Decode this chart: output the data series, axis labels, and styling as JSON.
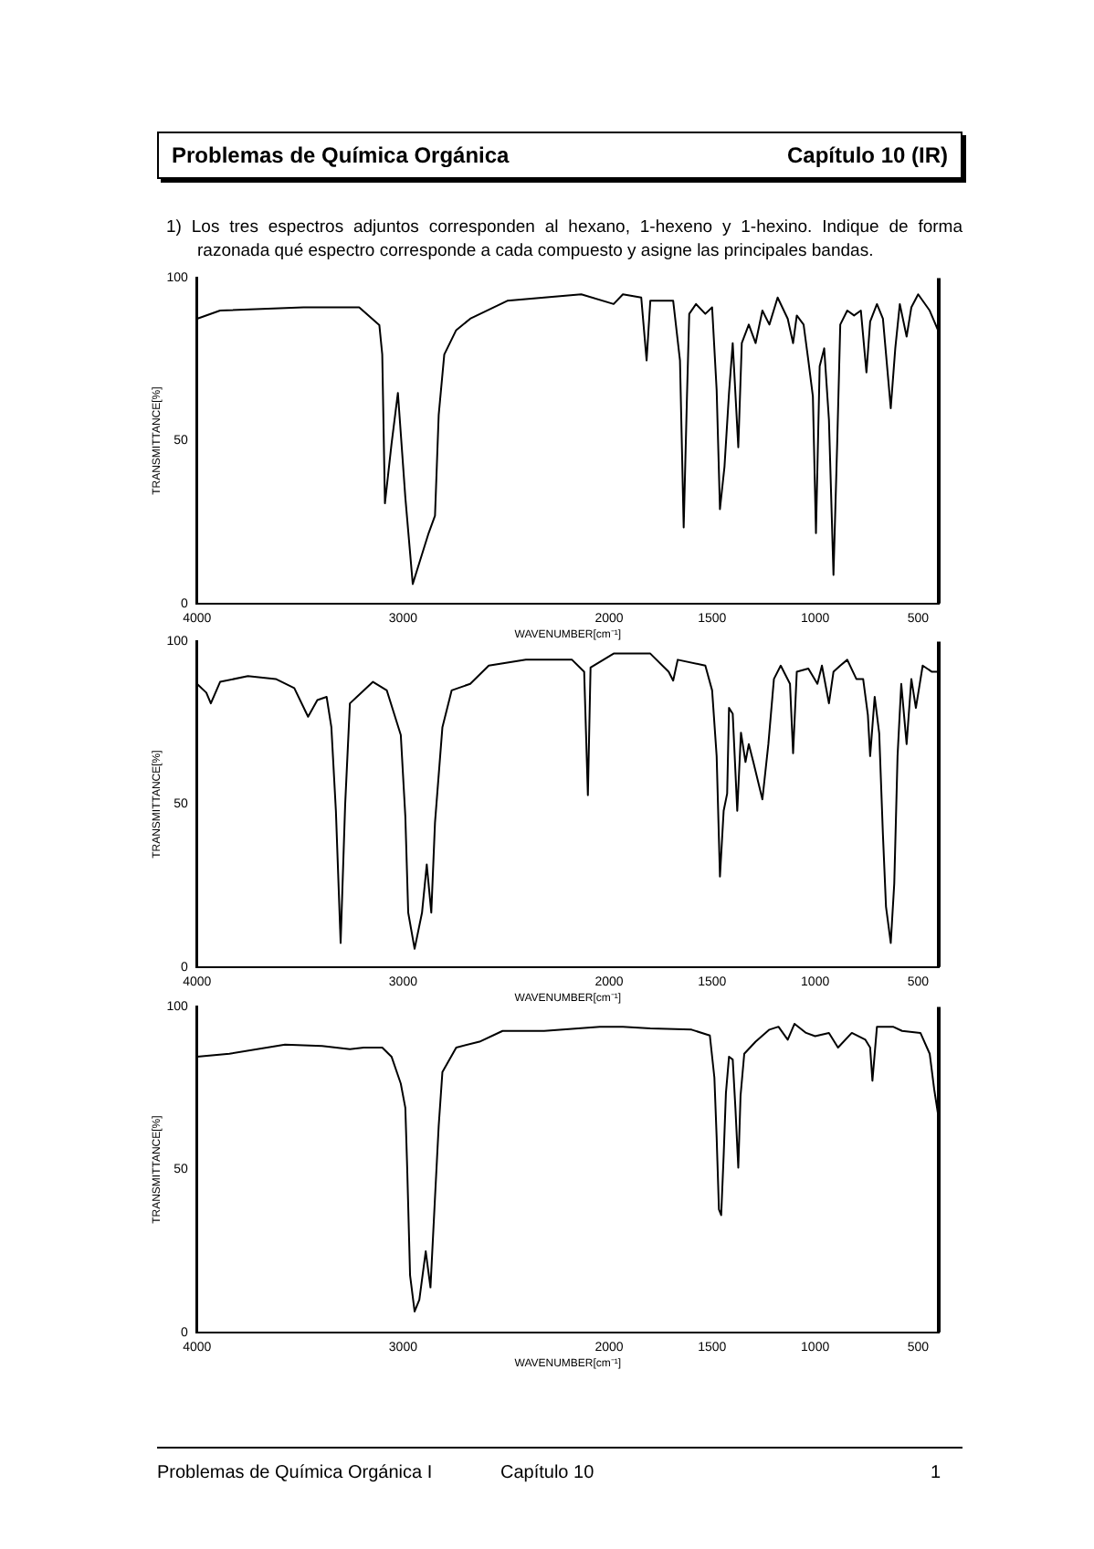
{
  "chart_data": [
    {
      "type": "line",
      "annotations": [
        "Problemas de Química Orgánica",
        "Capítulo 10 (IR)",
        "1) Los tres espectros adjuntos corresponden al hexano, 1-hexeno y 1-hexino. Indique de forma razonada qué espectro corresponde a cada compuesto y asigne las principales bandas."
      ],
      "xlabel": "WAVENUMBER[cm⁻¹]",
      "ylabel": "TRANSMITTANCE[%]",
      "xlim": [
        4000,
        400
      ],
      "xticks": [
        4000,
        3000,
        2000,
        1500,
        1000,
        500
      ],
      "ylim": [
        0,
        100
      ],
      "yticks": [
        0,
        50,
        100
      ],
      "grid": false,
      "legend": false,
      "marker": "none",
      "line_style": "solid",
      "series": [
        {
          "color": "#000000",
          "x": [
            4000,
            3888,
            3483,
            3213,
            3115,
            3101,
            3088,
            3056,
            3025,
            2989,
            2953,
            2921,
            2876,
            2845,
            2827,
            2800,
            2742,
            2674,
            2494,
            2135,
            1978,
            1933,
            1844,
            1818,
            1800,
            1689,
            1656,
            1638,
            1622,
            1611,
            1578,
            1533,
            1500,
            1478,
            1462,
            1440,
            1418,
            1400,
            1373,
            1356,
            1322,
            1289,
            1256,
            1222,
            1182,
            1133,
            1107,
            1089,
            1056,
            1033,
            1011,
            996,
            978,
            956,
            933,
            911,
            893,
            878,
            844,
            811,
            778,
            751,
            733,
            700,
            671,
            633,
            611,
            589,
            556,
            533,
            500,
            444,
            404
          ],
          "values": [
            87.5,
            90,
            91,
            91,
            85.5,
            76.5,
            30.8,
            49,
            64.7,
            32.6,
            6,
            12.5,
            21.6,
            27,
            58,
            76.5,
            84,
            87.5,
            93,
            95,
            92,
            95,
            94,
            74.7,
            93,
            93,
            74.7,
            23.4,
            63.7,
            89,
            92,
            89,
            91,
            65.6,
            29,
            42,
            64.7,
            80,
            48,
            80,
            85.7,
            80,
            90,
            85.7,
            94,
            87.5,
            80,
            88.5,
            85.7,
            74.7,
            63.7,
            21.6,
            72.9,
            78.4,
            56.4,
            8.8,
            49,
            85.7,
            90,
            88.5,
            90,
            71,
            86.6,
            92,
            87.5,
            60,
            78.4,
            92,
            82,
            91,
            95,
            90,
            84
          ]
        }
      ]
    },
    {
      "type": "line",
      "xlabel": "WAVENUMBER[cm⁻¹]",
      "ylabel": "TRANSMITTANCE[%]",
      "xlim": [
        4000,
        400
      ],
      "xticks": [
        4000,
        3000,
        2000,
        1500,
        1000,
        500
      ],
      "ylim": [
        0,
        100
      ],
      "yticks": [
        0,
        50,
        100
      ],
      "grid": false,
      "legend": false,
      "marker": "none",
      "line_style": "solid",
      "series": [
        {
          "color": "#000000",
          "x": [
            4000,
            3955,
            3933,
            3888,
            3753,
            3618,
            3528,
            3461,
            3416,
            3371,
            3348,
            3326,
            3303,
            3281,
            3258,
            3146,
            3079,
            3011,
            2989,
            2975,
            2944,
            2908,
            2885,
            2863,
            2845,
            2809,
            2764,
            2674,
            2584,
            2404,
            2180,
            2121,
            2103,
            2090,
            1978,
            1800,
            1711,
            1689,
            1667,
            1533,
            1500,
            1478,
            1462,
            1444,
            1427,
            1418,
            1400,
            1378,
            1360,
            1338,
            1322,
            1300,
            1256,
            1227,
            1200,
            1167,
            1122,
            1107,
            1089,
            1033,
            989,
            967,
            933,
            911,
            878,
            844,
            800,
            767,
            744,
            733,
            711,
            689,
            671,
            656,
            633,
            616,
            600,
            582,
            556,
            533,
            511,
            478,
            433,
            404
          ],
          "values": [
            87,
            84.3,
            81,
            87.6,
            89.4,
            88.5,
            85.7,
            76.9,
            82,
            83,
            73.7,
            48,
            7.4,
            50,
            81,
            87.6,
            85,
            71.3,
            46.3,
            16.7,
            5.6,
            16.7,
            31.5,
            16.7,
            44.4,
            73.7,
            85,
            87,
            92.6,
            94.4,
            94.4,
            90.7,
            52.8,
            92,
            96.3,
            96.3,
            90.7,
            88,
            94.4,
            92.6,
            85,
            64.8,
            27.8,
            48,
            53.3,
            79.6,
            77.8,
            48,
            72,
            63,
            68.5,
            63,
            51.5,
            68.5,
            88.5,
            92.6,
            87,
            65.7,
            90.7,
            91.7,
            87,
            92.6,
            81,
            90.7,
            92.6,
            94.4,
            88.5,
            88.5,
            77.4,
            64.8,
            83,
            71.8,
            40.7,
            18.5,
            7.4,
            25.6,
            64.8,
            87,
            68.5,
            88.5,
            79.6,
            92.6,
            90.7,
            90.7
          ]
        }
      ]
    },
    {
      "type": "line",
      "annotations": [
        "Problemas de Química Orgánica I",
        "Capítulo 10",
        "1"
      ],
      "xlabel": "WAVENUMBER[cm⁻¹]",
      "ylabel": "TRANSMITTANCE[%]",
      "xlim": [
        4000,
        400
      ],
      "xticks": [
        4000,
        3000,
        2000,
        1500,
        1000,
        500
      ],
      "ylim": [
        0,
        100
      ],
      "yticks": [
        0,
        50,
        100
      ],
      "grid": false,
      "legend": false,
      "marker": "none",
      "line_style": "solid",
      "series": [
        {
          "color": "#000000",
          "x": [
            4000,
            3843,
            3573,
            3393,
            3258,
            3191,
            3146,
            3101,
            3056,
            3011,
            2989,
            2980,
            2966,
            2944,
            2921,
            2890,
            2867,
            2845,
            2827,
            2809,
            2742,
            2629,
            2517,
            2315,
            2045,
            1933,
            1800,
            1600,
            1511,
            1489,
            1478,
            1467,
            1456,
            1444,
            1433,
            1418,
            1400,
            1387,
            1373,
            1362,
            1344,
            1289,
            1222,
            1178,
            1133,
            1100,
            1044,
            1000,
            933,
            889,
            822,
            756,
            733,
            722,
            700,
            622,
            578,
            489,
            444,
            422,
            404
          ],
          "values": [
            84.7,
            85.6,
            88.4,
            88,
            87,
            87.5,
            87.5,
            87.5,
            84.7,
            76.4,
            69,
            50.6,
            17.5,
            6.4,
            10,
            24.9,
            13.8,
            41.4,
            63.5,
            80,
            87.5,
            89.3,
            92.6,
            92.6,
            93.9,
            93.9,
            93.4,
            93,
            91.2,
            78.3,
            59.9,
            37.8,
            36,
            54.3,
            73.5,
            84.7,
            83.8,
            69,
            50.6,
            72.7,
            85.6,
            89.3,
            93,
            93.9,
            89.9,
            94.8,
            92,
            91,
            92,
            87.5,
            92,
            89.9,
            87.5,
            77.3,
            93.9,
            93.9,
            92.6,
            92,
            85.6,
            74.6,
            67.2
          ]
        }
      ]
    }
  ]
}
